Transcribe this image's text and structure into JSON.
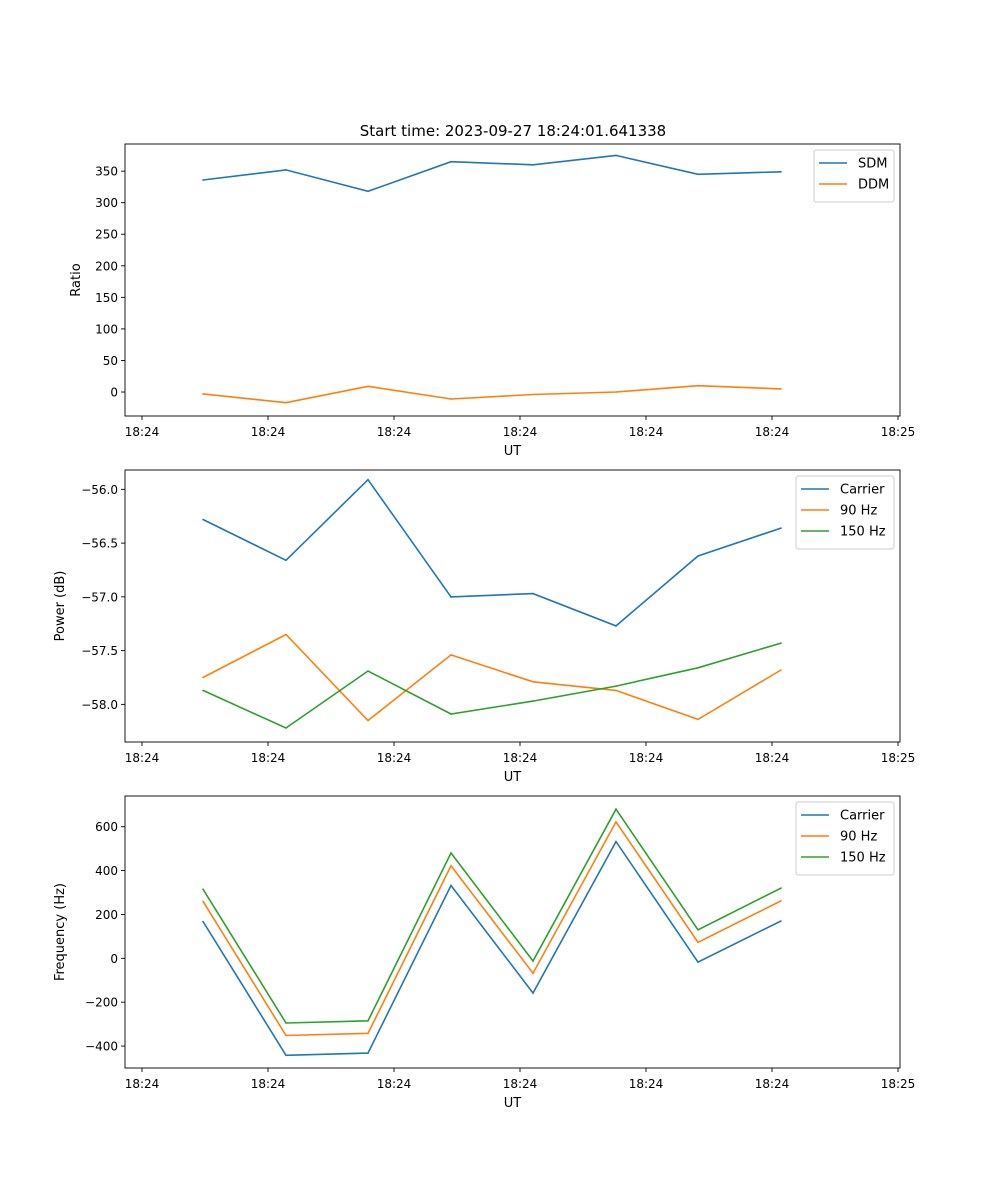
{
  "figure": {
    "title": "Start time: 2023-09-27 18:24:01.641338"
  },
  "colors": {
    "blue": "#1f77b4",
    "orange": "#ff7f0e",
    "green": "#2ca02c"
  },
  "chart_data": [
    {
      "type": "line",
      "title": "Start time: 2023-09-27 18:24:01.641338",
      "xlabel": "UT",
      "ylabel": "Ratio",
      "x_tick_labels": [
        "18:24",
        "18:24",
        "18:24",
        "18:24",
        "18:24",
        "18:24",
        "18:25"
      ],
      "y_ticks": [
        0,
        50,
        100,
        150,
        200,
        250,
        300,
        350
      ],
      "ylim": [
        -38,
        393
      ],
      "legend_position": "top-right",
      "series": [
        {
          "name": "SDM",
          "color": "#1f77b4",
          "values": [
            336,
            352,
            318,
            365,
            360,
            375,
            345,
            349
          ]
        },
        {
          "name": "DDM",
          "color": "#ff7f0e",
          "values": [
            -3,
            -17,
            9,
            -11,
            -4,
            0,
            10,
            5
          ]
        }
      ]
    },
    {
      "type": "line",
      "title": "",
      "xlabel": "UT",
      "ylabel": "Power (dB)",
      "x_tick_labels": [
        "18:24",
        "18:24",
        "18:24",
        "18:24",
        "18:24",
        "18:24",
        "18:25"
      ],
      "y_ticks": [
        -58.0,
        -57.5,
        -57.0,
        -56.5,
        -56.0
      ],
      "y_tick_labels": [
        "−58.0",
        "−57.5",
        "−57.0",
        "−56.5",
        "−56.0"
      ],
      "ylim": [
        -58.35,
        -55.82
      ],
      "legend_position": "top-right",
      "series": [
        {
          "name": "Carrier",
          "color": "#1f77b4",
          "values": [
            -56.28,
            -56.66,
            -55.91,
            -57.0,
            -56.97,
            -57.27,
            -56.62,
            -56.36
          ]
        },
        {
          "name": "90 Hz",
          "color": "#ff7f0e",
          "values": [
            -57.75,
            -57.35,
            -58.15,
            -57.54,
            -57.79,
            -57.87,
            -58.14,
            -57.68
          ]
        },
        {
          "name": "150 Hz",
          "color": "#2ca02c",
          "values": [
            -57.87,
            -58.22,
            -57.69,
            -58.09,
            -57.97,
            -57.83,
            -57.66,
            -57.43
          ]
        }
      ]
    },
    {
      "type": "line",
      "title": "",
      "xlabel": "UT",
      "ylabel": "Frequency (Hz)",
      "x_tick_labels": [
        "18:24",
        "18:24",
        "18:24",
        "18:24",
        "18:24",
        "18:24",
        "18:25"
      ],
      "y_ticks": [
        -400,
        -200,
        0,
        200,
        400,
        600
      ],
      "y_tick_labels": [
        "−400",
        "−200",
        "0",
        "200",
        "400",
        "600"
      ],
      "ylim": [
        -500,
        740
      ],
      "legend_position": "top-right",
      "series": [
        {
          "name": "Carrier",
          "color": "#1f77b4",
          "values": [
            168,
            -442,
            -432,
            332,
            -158,
            532,
            -17,
            170
          ]
        },
        {
          "name": "90 Hz",
          "color": "#ff7f0e",
          "values": [
            260,
            -352,
            -342,
            422,
            -68,
            622,
            73,
            262
          ]
        },
        {
          "name": "150 Hz",
          "color": "#2ca02c",
          "values": [
            315,
            -295,
            -285,
            480,
            -12,
            680,
            130,
            320
          ]
        }
      ]
    }
  ]
}
